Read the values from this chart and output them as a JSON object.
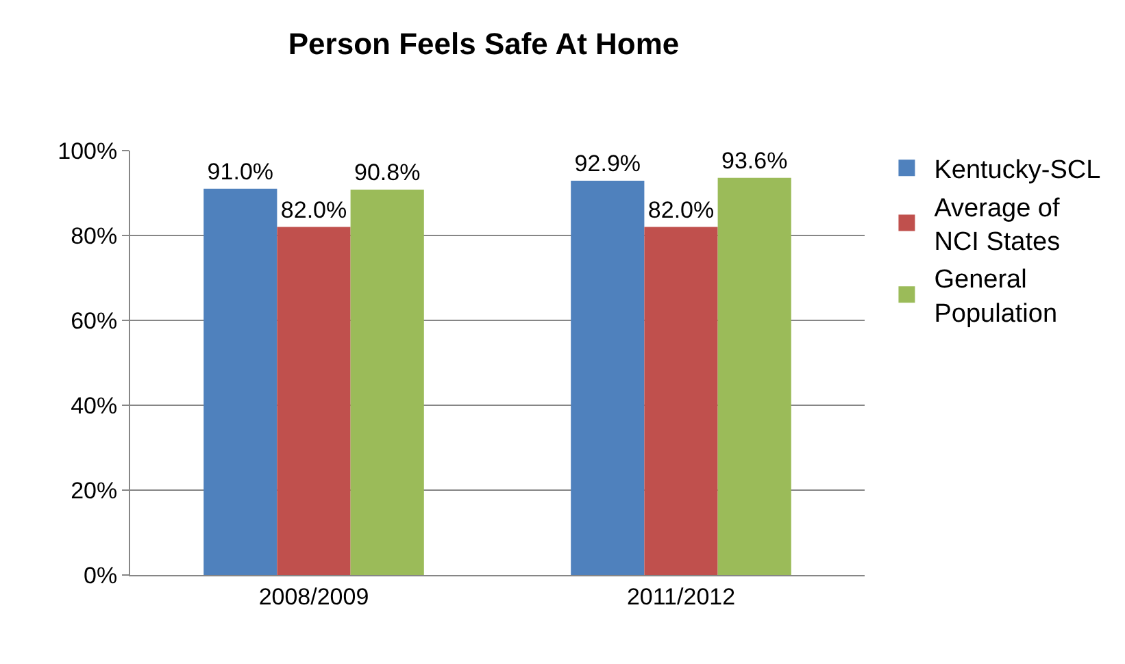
{
  "chart_data": {
    "type": "bar",
    "title": "Person Feels Safe At Home",
    "categories": [
      "2008/2009",
      "2011/2012"
    ],
    "series": [
      {
        "name": "Kentucky-SCL",
        "color": "#4f81bd",
        "values": [
          91.0,
          92.9
        ],
        "value_labels": [
          "91.0%",
          "92.9%"
        ]
      },
      {
        "name": "Average of NCI States",
        "color": "#c0504d",
        "values": [
          82.0,
          82.0
        ],
        "value_labels": [
          "82.0%",
          "82.0%"
        ]
      },
      {
        "name": "General Population",
        "color": "#9bbb59",
        "values": [
          90.8,
          93.6
        ],
        "value_labels": [
          "90.8%",
          "93.6%"
        ]
      }
    ],
    "ylim": [
      0,
      100
    ],
    "yticks": [
      {
        "value": 0,
        "label": "0%"
      },
      {
        "value": 20,
        "label": "20%"
      },
      {
        "value": 40,
        "label": "40%"
      },
      {
        "value": 60,
        "label": "60%"
      },
      {
        "value": 80,
        "label": "80%"
      },
      {
        "value": 100,
        "label": "100%"
      }
    ],
    "grid": "y",
    "legend": "right"
  }
}
